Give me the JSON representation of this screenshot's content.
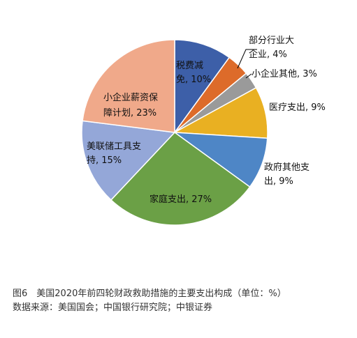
{
  "caption": {
    "figure_title": "图6　美国2020年前四轮财政救助措施的主要支出构成（单位：%）",
    "source": "数据来源：美国国会；中国银行研究院；中银证券"
  },
  "chart_data": {
    "type": "pie",
    "unit": "%",
    "start_angle_deg": 0,
    "direction": "clockwise",
    "slices": [
      {
        "name": "税费减免",
        "value": 10,
        "color": "#3d5fa8",
        "label_lines": [
          "税费减",
          "免, 10%"
        ]
      },
      {
        "name": "部分行业大企业",
        "value": 4,
        "color": "#dd6b2a",
        "label_lines": [
          "部分行业大",
          "企业, 4%"
        ]
      },
      {
        "name": "小企业其他",
        "value": 3,
        "color": "#9a9a9a",
        "label_lines": [
          "小企业其他, 3%"
        ]
      },
      {
        "name": "医疗支出",
        "value": 9,
        "color": "#e9b022",
        "label_lines": [
          "医疗支出, 9%"
        ]
      },
      {
        "name": "政府其他支出",
        "value": 9,
        "color": "#4e86c6",
        "label_lines": [
          "政府其他支",
          "出, 9%"
        ]
      },
      {
        "name": "家庭支出",
        "value": 27,
        "color": "#6ba046",
        "label_lines": [
          "家庭支出, 27%"
        ]
      },
      {
        "name": "美联储工具支持",
        "value": 15,
        "color": "#94a7d8",
        "label_lines": [
          "美联储工具支",
          "持, 15%"
        ]
      },
      {
        "name": "小企业薪资保障计划",
        "value": 23,
        "color": "#f0a98a",
        "label_lines": [
          "小企业薪资保",
          "障计划, 23%"
        ]
      }
    ]
  }
}
